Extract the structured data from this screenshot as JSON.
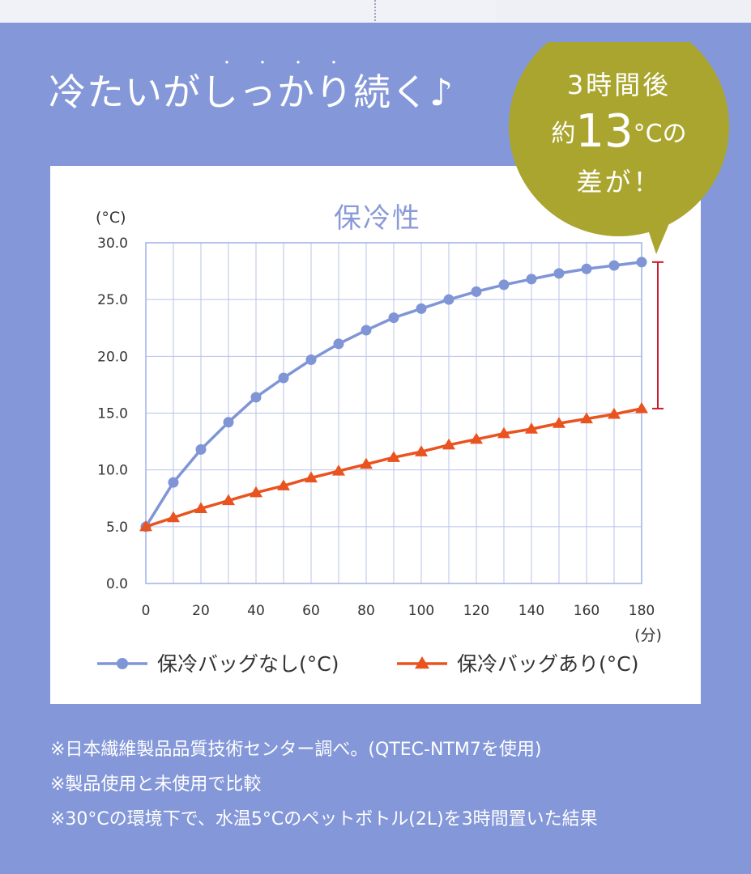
{
  "headline": "冷たいがしっかり続く♪",
  "emphasis_marks": "・・・・",
  "badge": {
    "line1": "3時間後",
    "line2_prefix": "約",
    "line2_number": "13",
    "line2_suffix": "°Cの",
    "line3": "差が！",
    "color": "#a9a52f"
  },
  "chart_data": {
    "type": "line",
    "title": "保冷性",
    "y_unit_label": "(°C)",
    "x_unit_label": "(分)",
    "x": [
      0,
      10,
      20,
      30,
      40,
      50,
      60,
      70,
      80,
      90,
      100,
      110,
      120,
      130,
      140,
      150,
      160,
      170,
      180
    ],
    "x_ticks": [
      0,
      20,
      40,
      60,
      80,
      100,
      120,
      140,
      160,
      180
    ],
    "y_ticks": [
      "0.0",
      "5.0",
      "10.0",
      "15.0",
      "20.0",
      "25.0",
      "30.0"
    ],
    "xlim": [
      0,
      180
    ],
    "ylim": [
      0,
      30
    ],
    "grid": true,
    "legend_position": "bottom",
    "series": [
      {
        "name": "保冷バッグなし(°C)",
        "marker": "circle",
        "color": "#7f95d6",
        "values": [
          5.0,
          8.9,
          11.8,
          14.2,
          16.4,
          18.1,
          19.7,
          21.1,
          22.3,
          23.4,
          24.2,
          25.0,
          25.7,
          26.3,
          26.8,
          27.3,
          27.7,
          28.0,
          28.3
        ]
      },
      {
        "name": "保冷バッグあり(°C)",
        "marker": "triangle",
        "color": "#e9531f",
        "values": [
          5.0,
          5.8,
          6.6,
          7.3,
          8.0,
          8.6,
          9.3,
          9.9,
          10.5,
          11.1,
          11.6,
          12.2,
          12.7,
          13.2,
          13.6,
          14.1,
          14.5,
          14.9,
          15.4
        ]
      }
    ],
    "difference_bracket_color": "#cc1a2a"
  },
  "notes": [
    "※日本繊維製品品質技術センター調べ。(QTEC-NTM7を使用)",
    "※製品使用と未使用で比較",
    "※30°Cの環境下で、水温5°Cのペットボトル(2L)を3時間置いた結果"
  ]
}
